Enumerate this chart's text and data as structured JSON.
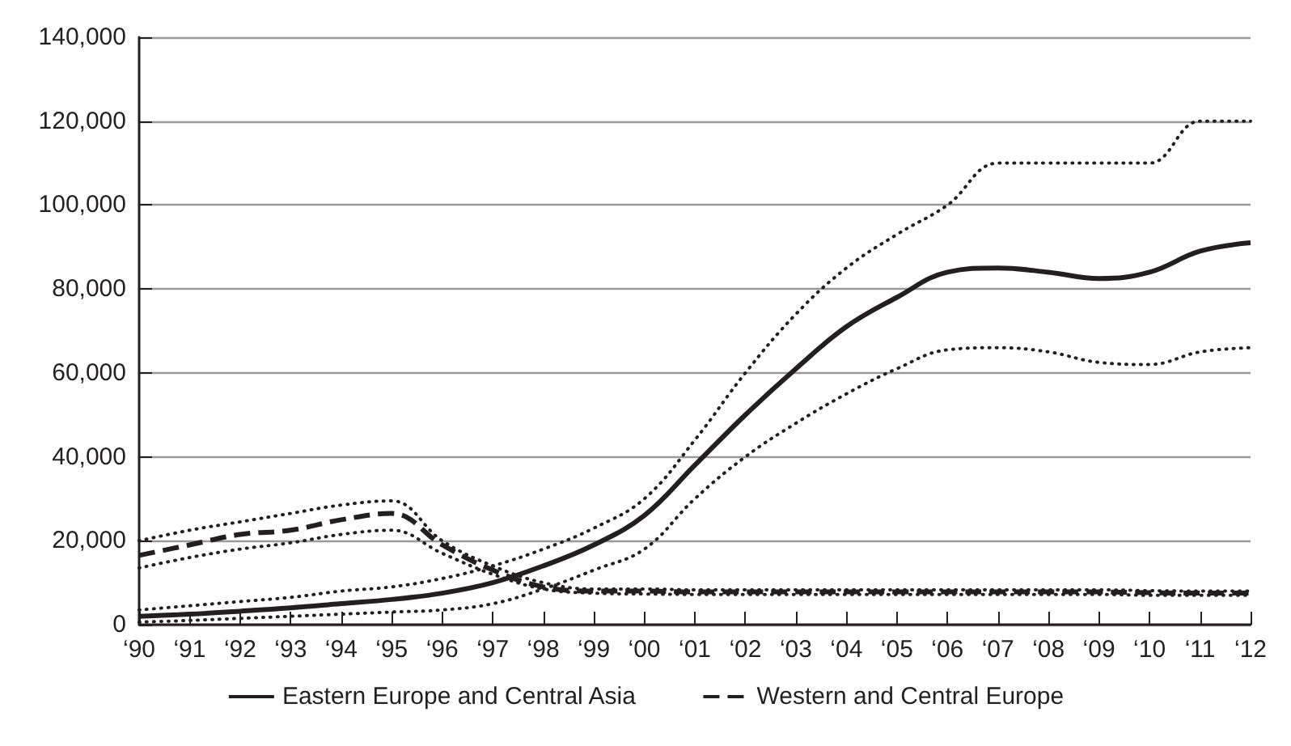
{
  "chart_data": {
    "type": "line",
    "categories": [
      "‘90",
      "‘91",
      "‘92",
      "‘93",
      "‘94",
      "‘95",
      "‘96",
      "‘97",
      "‘98",
      "‘99",
      "‘00",
      "‘01",
      "‘02",
      "‘03",
      "‘04",
      "‘05",
      "‘06",
      "‘07",
      "‘08",
      "‘09",
      "‘10",
      "‘11",
      "‘12"
    ],
    "series": [
      {
        "name": "Eastern Europe and Central Asia",
        "color": "#231f20",
        "line_style": "solid",
        "values": [
          2000,
          2500,
          3200,
          4000,
          5000,
          6000,
          7500,
          10000,
          14000,
          19000,
          26000,
          38000,
          50000,
          61000,
          71000,
          78000,
          84000,
          85000,
          84000,
          82500,
          84000,
          89000,
          91000
        ]
      },
      {
        "color": "#231f20",
        "line_style": "dotted",
        "values": [
          600,
          1000,
          1500,
          2000,
          2500,
          3000,
          3500,
          5000,
          8500,
          13000,
          18000,
          30000,
          40000,
          48000,
          55000,
          61000,
          65500,
          66000,
          65000,
          62500,
          62000,
          65000,
          66000
        ]
      },
      {
        "color": "#231f20",
        "line_style": "dotted",
        "values": [
          3500,
          4500,
          5500,
          6500,
          8000,
          9000,
          11000,
          14000,
          18000,
          23000,
          30000,
          44000,
          60000,
          74000,
          85000,
          93000,
          100000,
          110000,
          110000,
          110000,
          110000,
          120000,
          120000
        ]
      },
      {
        "name": "Western and Central Europe",
        "color": "#231f20",
        "line_style": "dashed",
        "values": [
          16500,
          19000,
          21500,
          22500,
          25000,
          26500,
          19000,
          13000,
          9000,
          8000,
          8000,
          7800,
          7800,
          7800,
          7800,
          7800,
          7800,
          7800,
          7800,
          7800,
          7600,
          7500,
          7500
        ]
      },
      {
        "color": "#231f20",
        "line_style": "dotted",
        "values": [
          13500,
          16000,
          18000,
          19500,
          21500,
          22500,
          17000,
          12000,
          8500,
          7500,
          7300,
          7200,
          7200,
          7200,
          7200,
          7200,
          7200,
          7200,
          7200,
          7200,
          7000,
          7000,
          7000
        ]
      },
      {
        "color": "#231f20",
        "line_style": "dotted",
        "values": [
          20000,
          22500,
          24500,
          26500,
          28500,
          29500,
          20000,
          14000,
          10000,
          8500,
          8500,
          8300,
          8300,
          8300,
          8300,
          8300,
          8300,
          8300,
          8300,
          8300,
          8100,
          8000,
          8000
        ]
      }
    ],
    "ylim": [
      0,
      140000
    ],
    "yticks": [
      0,
      {
        "value": 20000,
        "label": "20,000"
      },
      {
        "value": 40000,
        "label": "40,000"
      },
      {
        "value": 60000,
        "label": "60,000"
      },
      {
        "value": 80000,
        "label": "80,000"
      },
      {
        "value": 100000,
        "label": "100,000"
      },
      {
        "value": 120000,
        "label": "120,000"
      },
      {
        "value": 140000,
        "label": "140,000"
      }
    ],
    "grid": "y",
    "legend": "bottom",
    "marker": "none"
  }
}
